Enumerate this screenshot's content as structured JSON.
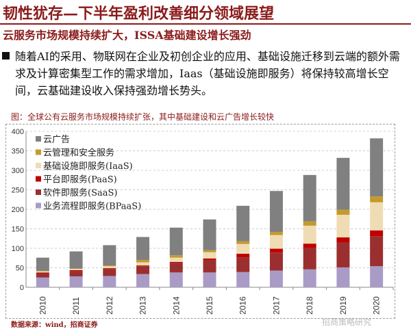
{
  "header": {
    "title": "韧性犹存—下半年盈利改善细分领域展望",
    "subtitle": "云服务市场规模持续扩大，ISSA基础建设增长强劲"
  },
  "body": {
    "paragraph": "随着AI的采用、物联网在企业及初创企业的应用、基础设施迁移到云端的额外需求及计算密集型工作的需求增加，Iaas（基础设施即服务）将保持较高增长空间，云基础建设收入保持强劲增长势头。"
  },
  "figure": {
    "caption": "图：全球公有云服务市场规模持续扩张，其中基础建设和云广告增长较快",
    "source": "数据来源：wind，招商证券",
    "watermark": "招商策略研究"
  },
  "chart_data": {
    "type": "bar",
    "stacked": true,
    "categories": [
      "2010",
      "2011",
      "2012",
      "2013",
      "2014",
      "2015",
      "2016",
      "2017",
      "2018",
      "2019",
      "2020"
    ],
    "ylim": [
      0,
      400
    ],
    "yticks": [
      "0",
      "50",
      "100",
      "150",
      "200",
      "250",
      "300",
      "350",
      "400"
    ],
    "grid": true,
    "legend_position": "top-left",
    "series": [
      {
        "name": "业务流程即服务(BPaaS)",
        "color": "#a99bc6",
        "values": [
          25,
          28,
          29,
          34,
          38,
          38,
          39,
          43,
          46,
          51,
          54
        ]
      },
      {
        "name": "软件即服务(SaaS)",
        "color": "#9b2f2f",
        "values": [
          11,
          14,
          18,
          20,
          25,
          33,
          38,
          46,
          55,
          64,
          77
        ]
      },
      {
        "name": "平台即服务(PaaS)",
        "color": "#c00000",
        "values": [
          2,
          2,
          2,
          2,
          2,
          3,
          9,
          10,
          11,
          13,
          15
        ]
      },
      {
        "name": "基础设施即服务(IaaS)",
        "color": "#efdcb4",
        "values": [
          3,
          3,
          5,
          8,
          11,
          16,
          25,
          35,
          46,
          58,
          72
        ]
      },
      {
        "name": "云管理和安全服务",
        "color": "#c49a2a",
        "values": [
          1,
          1,
          2,
          6,
          6,
          5,
          7,
          8,
          11,
          13,
          15
        ]
      },
      {
        "name": "云广告",
        "color": "#808080",
        "values": [
          34,
          44,
          52,
          59,
          71,
          79,
          91,
          105,
          119,
          133,
          149
        ]
      }
    ]
  }
}
